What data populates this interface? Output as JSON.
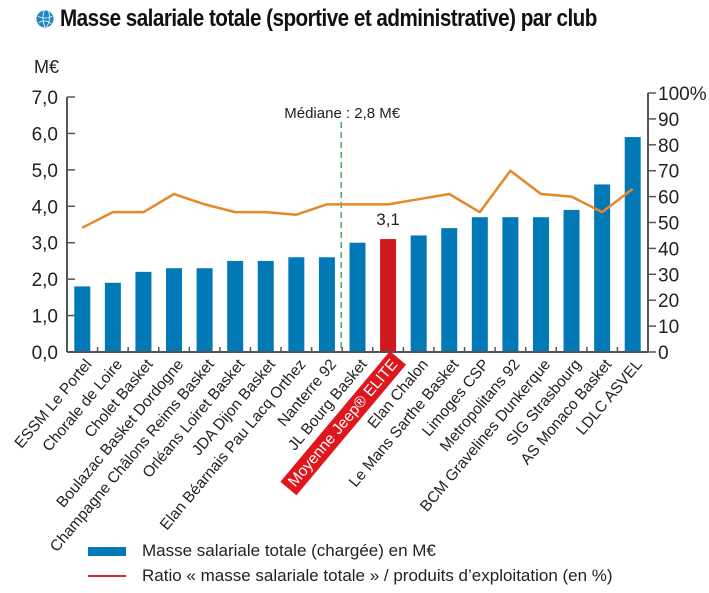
{
  "title": "Masse salariale totale (sportive et administrative) par club",
  "title_icon": "basketball-icon",
  "colors": {
    "bar": "#0079b6",
    "highlight_bar": "#d0181f",
    "line": "#e5882a",
    "legend_line": "#d8232a",
    "median": "#3aa655",
    "axis": "#555555",
    "highlight_label_bg": "#e0161e"
  },
  "chart_data": {
    "type": "bar",
    "title": "Masse salariale totale (sportive et administrative) par club",
    "xlabel": "",
    "ylabel": "M€",
    "y2label": "%",
    "ylim": [
      0,
      7
    ],
    "y2lim": [
      0,
      100
    ],
    "yticks": [
      "0,0",
      "1,0",
      "2,0",
      "3,0",
      "4,0",
      "5,0",
      "6,0",
      "7,0"
    ],
    "y2ticks": [
      "0",
      "10",
      "20",
      "30",
      "40",
      "50",
      "60",
      "70",
      "80",
      "90",
      "100%"
    ],
    "grid": false,
    "legend_position": "bottom",
    "categories": [
      "ESSM Le Portel",
      "Chorale de Loire",
      "Cholet Basket",
      "Boulazac Basket Dordogne",
      "Champagne Châlons Reims Basket",
      "Orléans Loiret Basket",
      "JDA Dijon Basket",
      "Elan Béarnais Pau Lacq Orthez",
      "Nanterre 92",
      "JL Bourg Basket",
      "Moyenne Jeep® ELITE",
      "Elan Chalon",
      "Le Mans Sarthe Basket",
      "Limoges CSP",
      "Metropolitans 92",
      "BCM Gravelines Dunkerque",
      "SIG Strasbourg",
      "AS Monaco Basket",
      "LDLC ASVEL"
    ],
    "highlight_index": 10,
    "series": [
      {
        "name": "Masse salariale totale (chargée) en M€",
        "type": "bar",
        "axis": "left",
        "values": [
          1.8,
          1.9,
          2.2,
          2.3,
          2.3,
          2.5,
          2.5,
          2.6,
          2.6,
          3.0,
          3.1,
          3.2,
          3.4,
          3.7,
          3.7,
          3.7,
          3.9,
          4.6,
          5.9
        ]
      },
      {
        "name": "Ratio « masse salariale totale » / produits d’exploitation (en %)",
        "type": "line",
        "axis": "right",
        "values": [
          48,
          54,
          54,
          61,
          57,
          54,
          54,
          53,
          57,
          57,
          57,
          59,
          61,
          54,
          70,
          61,
          60,
          54,
          63
        ]
      }
    ],
    "data_labels": [
      {
        "index": 10,
        "text": "3,1"
      }
    ],
    "annotations": [
      {
        "type": "vline",
        "value": 2.8,
        "label": "Médiane : 2,8 M€"
      }
    ]
  },
  "legend": {
    "bar_label": "Masse salariale totale (chargée) en M€",
    "line_label": "Ratio « masse salariale totale » / produits d’exploitation (en %)"
  }
}
